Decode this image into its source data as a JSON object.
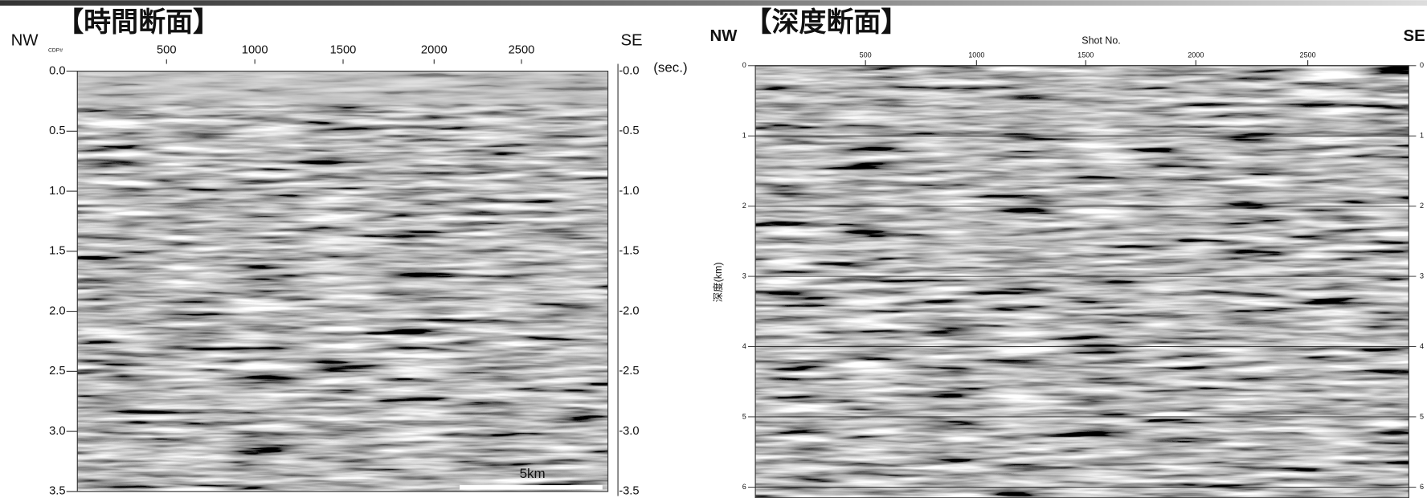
{
  "left_panel": {
    "title": "【時間断面】",
    "left_label": "NW",
    "right_label": "SE",
    "x_axis_label": "CDP#",
    "x_ticks": [
      "500",
      "1000",
      "1500",
      "2000",
      "2500"
    ],
    "y_ticks": [
      "0.0",
      "0.5",
      "1.0",
      "1.5",
      "2.0",
      "2.5",
      "3.0",
      "3.5"
    ],
    "right_ticks": [
      "-0.0",
      "-0.5",
      "-1.0",
      "-1.5",
      "-2.0",
      "-2.5",
      "-3.0",
      "-3.5"
    ],
    "unit": "(sec.)",
    "scale_bar": "5km"
  },
  "right_panel": {
    "title": "【深度断面】",
    "left_label": "NW",
    "right_label": "SE",
    "x_axis_label": "Shot No.",
    "x_ticks": [
      "500",
      "1000",
      "1500",
      "2000",
      "2500"
    ],
    "y_ticks": [
      "0",
      "1",
      "2",
      "3",
      "4",
      "5",
      "6"
    ],
    "right_ticks": [
      "0",
      "1",
      "2",
      "3",
      "4",
      "5",
      "6"
    ],
    "y_axis_label": "深度(km)"
  }
}
